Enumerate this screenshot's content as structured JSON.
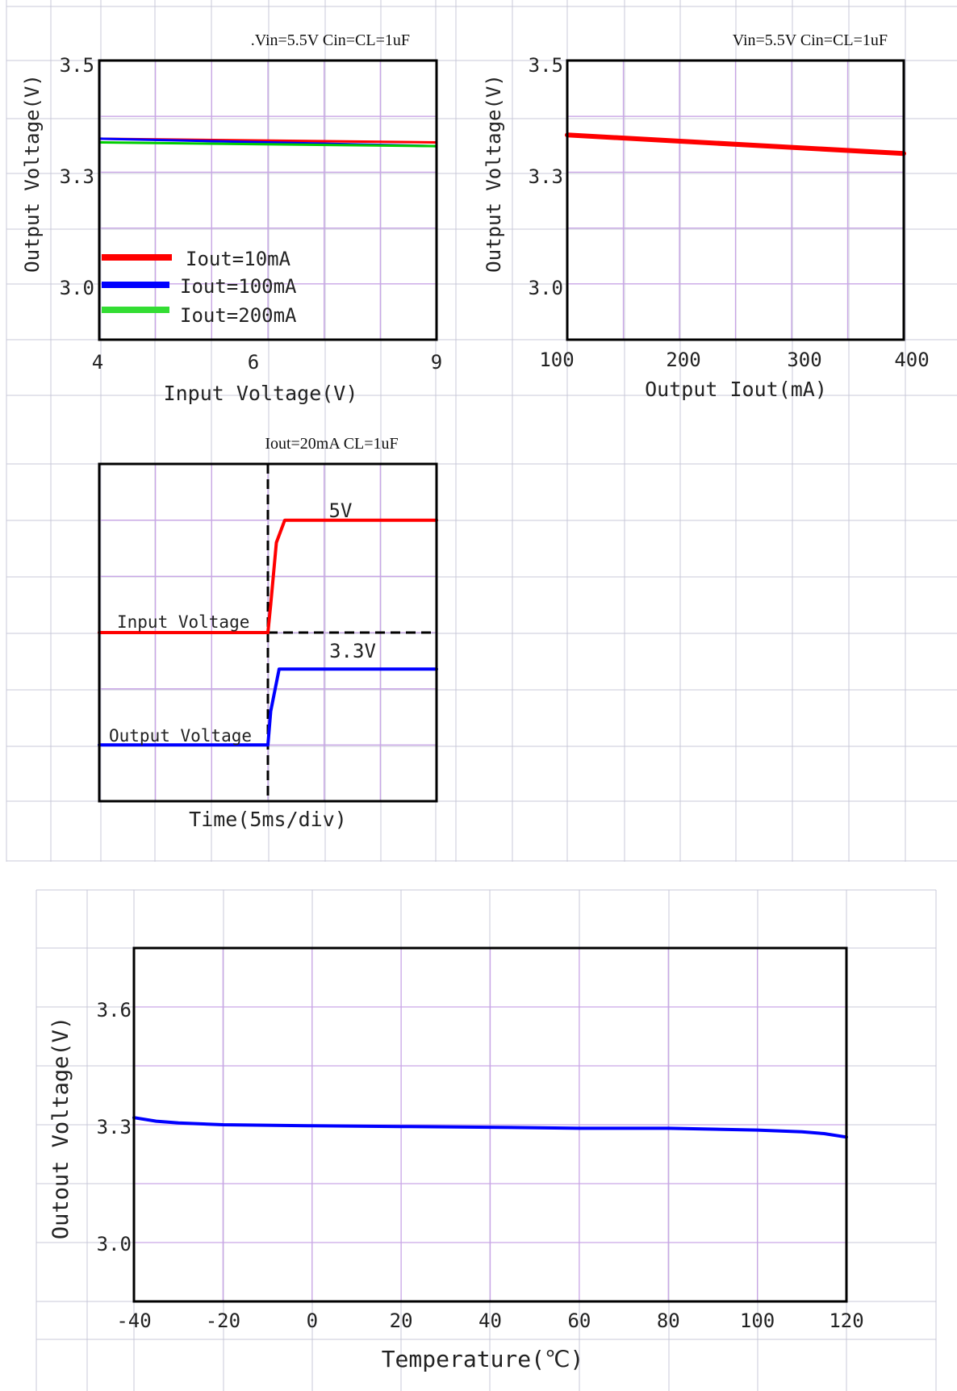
{
  "chart_data": [
    {
      "type": "line",
      "subtitle": ".Vin=5.5V Cin=CL=1uF",
      "xlabel": "Input Voltage(V)",
      "ylabel": "Output Voltage(V)",
      "xlim": [
        4,
        9
      ],
      "ylim": [
        2.75,
        3.5
      ],
      "x_ticks": [
        "4",
        "6",
        "9"
      ],
      "y_ticks": [
        "3.5",
        "3.3",
        "3.0"
      ],
      "legend_position": "bottom-left",
      "series": [
        {
          "name": "Iout=10mA",
          "color": "#ff0000",
          "x": [
            4,
            9
          ],
          "y": [
            3.29,
            3.28
          ]
        },
        {
          "name": "Iout=100mA",
          "color": "#0000ff",
          "x": [
            4,
            9
          ],
          "y": [
            3.29,
            3.27
          ]
        },
        {
          "name": "Iout=200mA",
          "color": "#00cc00",
          "x": [
            4,
            9
          ],
          "y": [
            3.28,
            3.27
          ]
        }
      ]
    },
    {
      "type": "line",
      "subtitle": "Vin=5.5V Cin=CL=1uF",
      "xlabel": "Output Iout(mA)",
      "ylabel": "Output Voltage(V)",
      "xlim": [
        100,
        400
      ],
      "ylim": [
        2.75,
        3.5
      ],
      "x_ticks": [
        "100",
        "200",
        "300",
        "400"
      ],
      "y_ticks": [
        "3.5",
        "3.3",
        "3.0"
      ],
      "series": [
        {
          "color": "#ff0000",
          "x": [
            100,
            400
          ],
          "y": [
            3.3,
            3.25
          ]
        }
      ]
    },
    {
      "type": "line",
      "subtitle": "Iout=20mA CL=1uF",
      "xlabel": "Time(5ms/div)",
      "annotations": [
        "5V",
        "Input Voltage",
        "3.3V",
        "Output Voltage"
      ],
      "series": [
        {
          "color": "#ff0000",
          "x": [
            0,
            3,
            3.05,
            3.15,
            3.3,
            6
          ],
          "y": [
            3.0,
            3.0,
            3.5,
            4.6,
            5.0,
            5.0
          ]
        },
        {
          "color": "#0000ff",
          "x": [
            0,
            3,
            3.05,
            3.2,
            6
          ],
          "y": [
            1.0,
            1.0,
            1.6,
            2.35,
            2.35
          ]
        }
      ]
    },
    {
      "type": "line",
      "xlabel": "Temperature(℃)",
      "ylabel": "Outout Voltage(V)",
      "xlim": [
        -40,
        120
      ],
      "ylim": [
        2.79,
        3.79
      ],
      "x_ticks": [
        "-40",
        "-20",
        "0",
        "20",
        "40",
        "60",
        "80",
        "100",
        "120"
      ],
      "y_ticks": [
        "3.6",
        "3.3",
        "3.0"
      ],
      "series": [
        {
          "color": "#0000ff",
          "x": [
            -40,
            -35,
            -30,
            -20,
            0,
            20,
            40,
            60,
            80,
            100,
            110,
            115,
            120
          ],
          "y": [
            3.31,
            3.3,
            3.295,
            3.29,
            3.287,
            3.285,
            3.283,
            3.28,
            3.28,
            3.275,
            3.27,
            3.265,
            3.255
          ]
        }
      ]
    }
  ]
}
